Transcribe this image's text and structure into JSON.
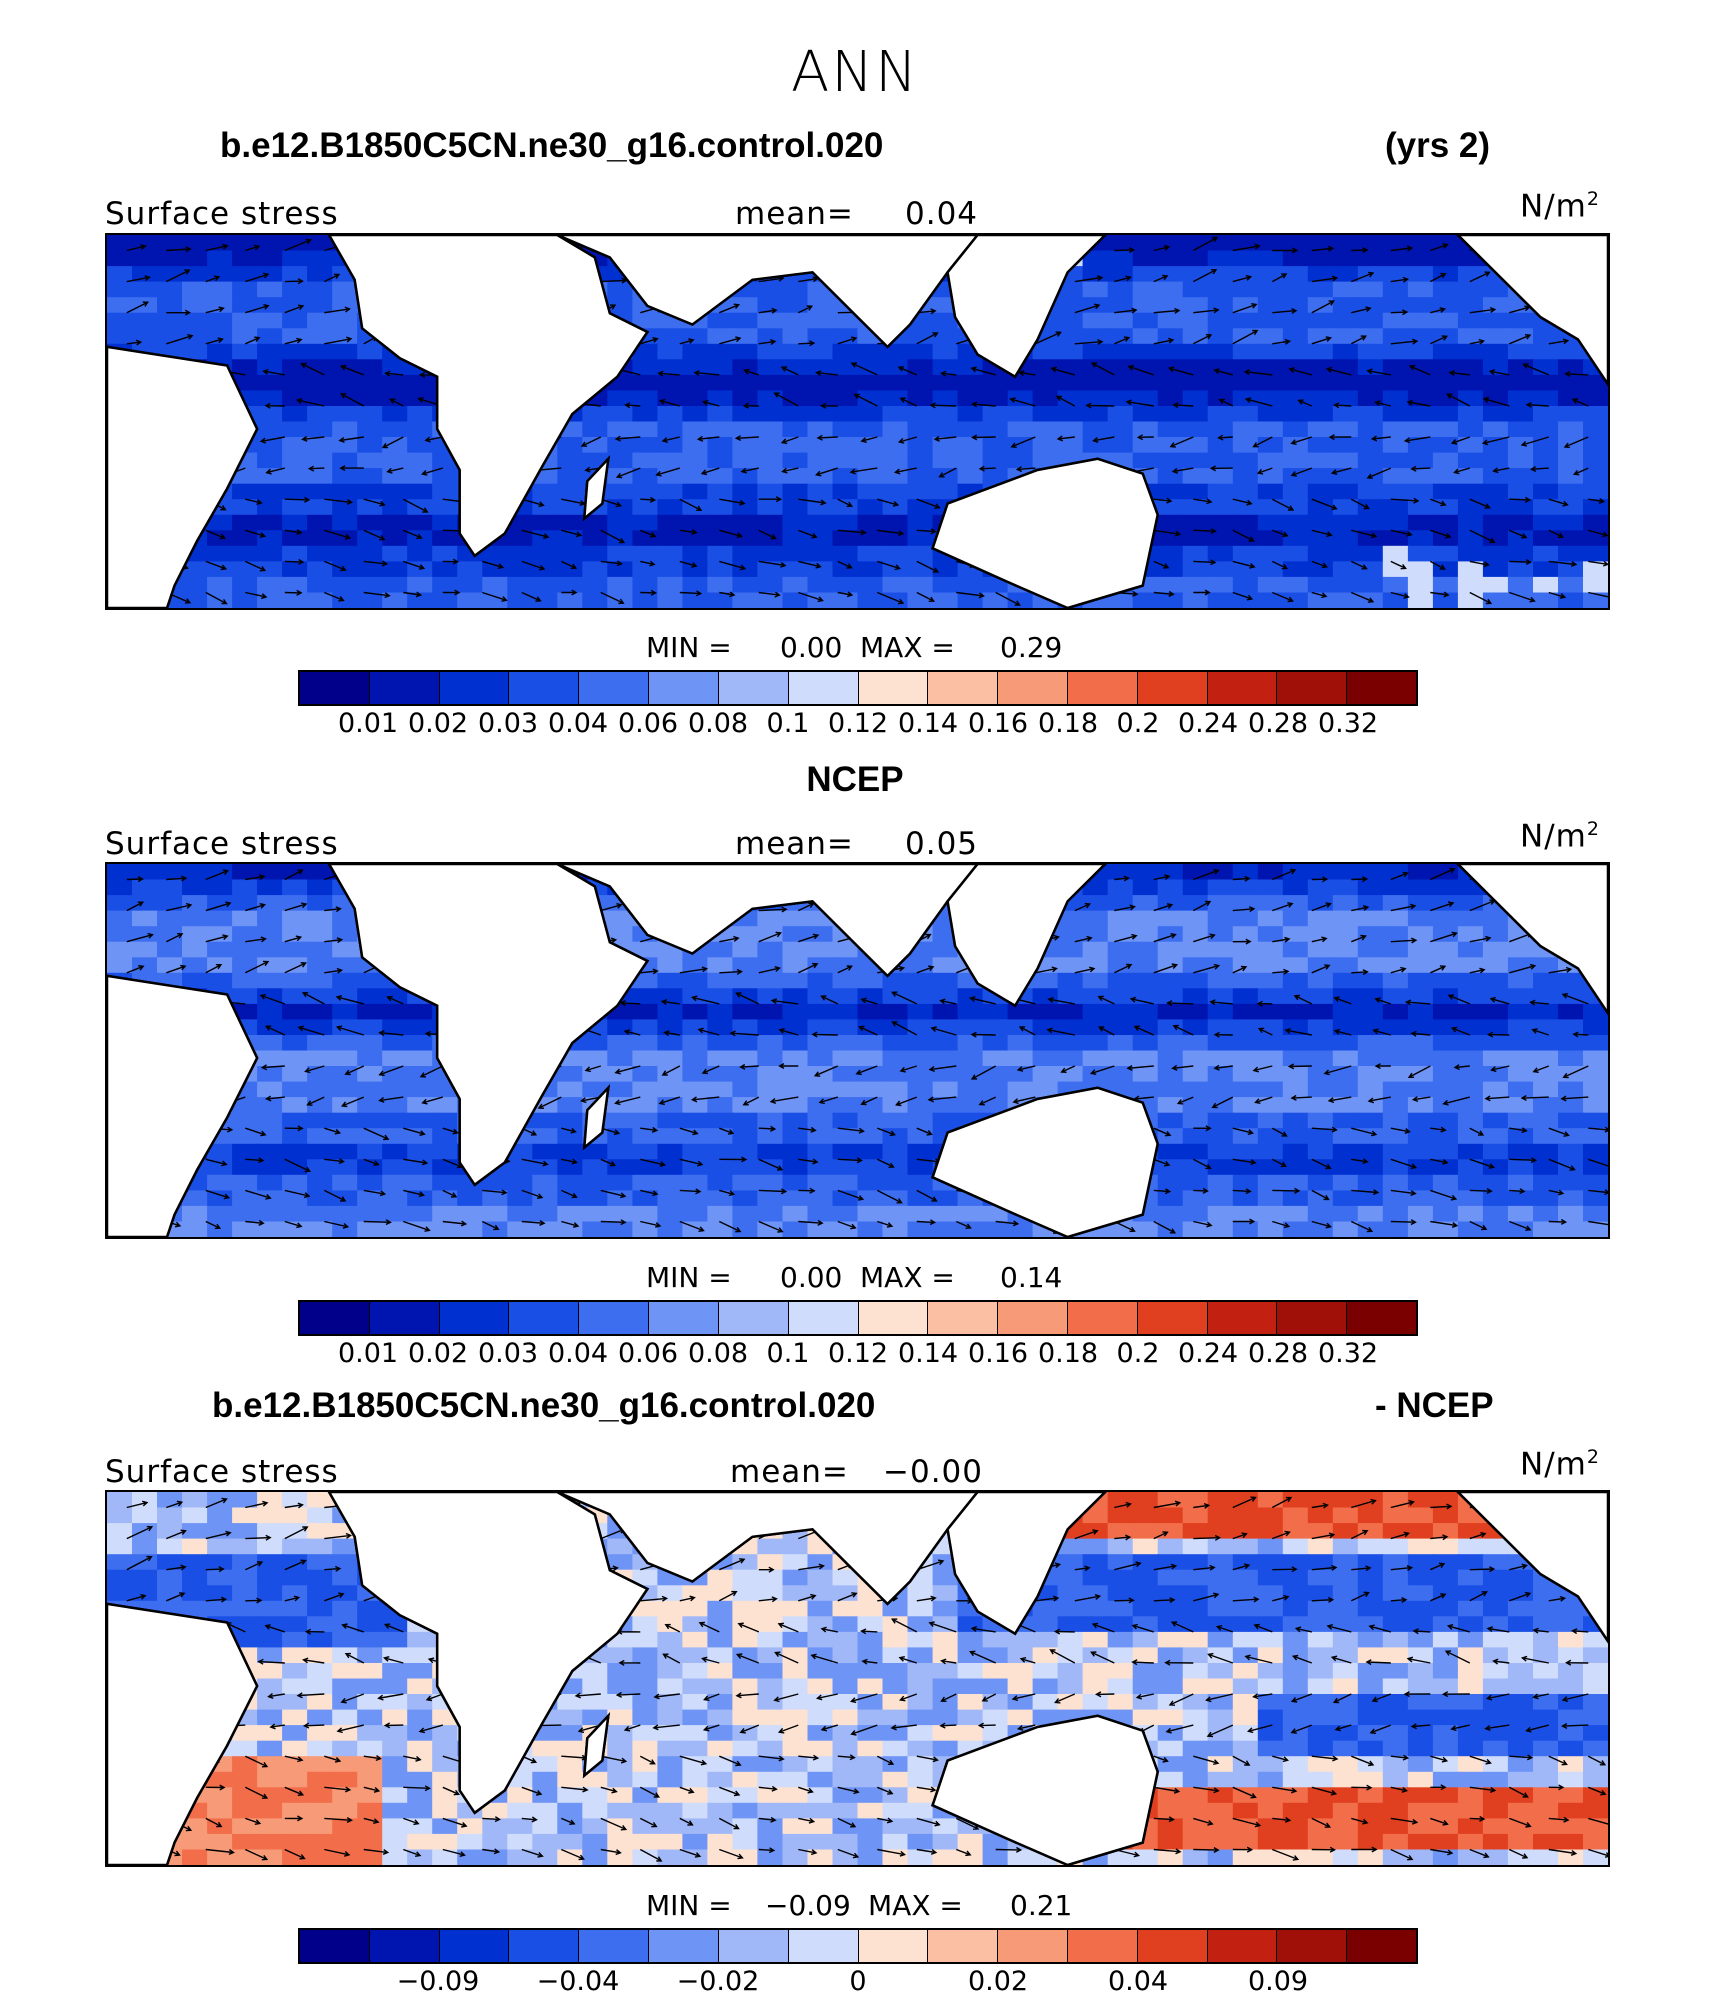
{
  "title": "ANN",
  "colors": [
    "#00008a",
    "#0014b0",
    "#0030d0",
    "#1a4fe6",
    "#3d6ef0",
    "#6e94f5",
    "#a0b8f8",
    "#cfdcfb",
    "#fde2d2",
    "#fbc0a4",
    "#f79a77",
    "#f26d4a",
    "#e0401f",
    "#c22010",
    "#a01008",
    "#7a0000"
  ],
  "panels": [
    {
      "heading_left": "b.e12.B1850C5CN.ne30_g16.control.020",
      "heading_right": "(yrs 2)",
      "label": "Surface stress",
      "mean_label": "mean=",
      "mean_value": "0.04",
      "units": "N/m",
      "units_exp": "2",
      "min_label": "MIN =",
      "min_value": "0.00",
      "max_label": "MAX =",
      "max_value": "0.29",
      "ticks": [
        "0.01",
        "0.02",
        "0.03",
        "0.04",
        "0.06",
        "0.08",
        "0.1",
        "0.12",
        "0.14",
        "0.16",
        "0.18",
        "0.2",
        "0.24",
        "0.28",
        "0.32"
      ],
      "fill": "abs"
    },
    {
      "heading_left": "NCEP",
      "heading_right": "",
      "label": "Surface stress",
      "mean_label": "mean=",
      "mean_value": "0.05",
      "units": "N/m",
      "units_exp": "2",
      "min_label": "MIN =",
      "min_value": "0.00",
      "max_label": "MAX =",
      "max_value": "0.14",
      "ticks": [
        "0.01",
        "0.02",
        "0.03",
        "0.04",
        "0.06",
        "0.08",
        "0.1",
        "0.12",
        "0.14",
        "0.16",
        "0.18",
        "0.2",
        "0.24",
        "0.28",
        "0.32"
      ],
      "fill": "abs"
    },
    {
      "heading_left": "b.e12.B1850C5CN.ne30_g16.control.020",
      "heading_right": "- NCEP",
      "label": "Surface stress",
      "mean_label": "mean=",
      "mean_value": "−0.00",
      "units": "N/m",
      "units_exp": "2",
      "min_label": "MIN =",
      "min_value": "−0.09",
      "max_label": "MAX =",
      "max_value": "0.21",
      "ticks": [
        "−0.09",
        "−0.04",
        "−0.02",
        "0",
        "0.02",
        "0.04",
        "0.09"
      ],
      "fill": "diff"
    }
  ]
}
